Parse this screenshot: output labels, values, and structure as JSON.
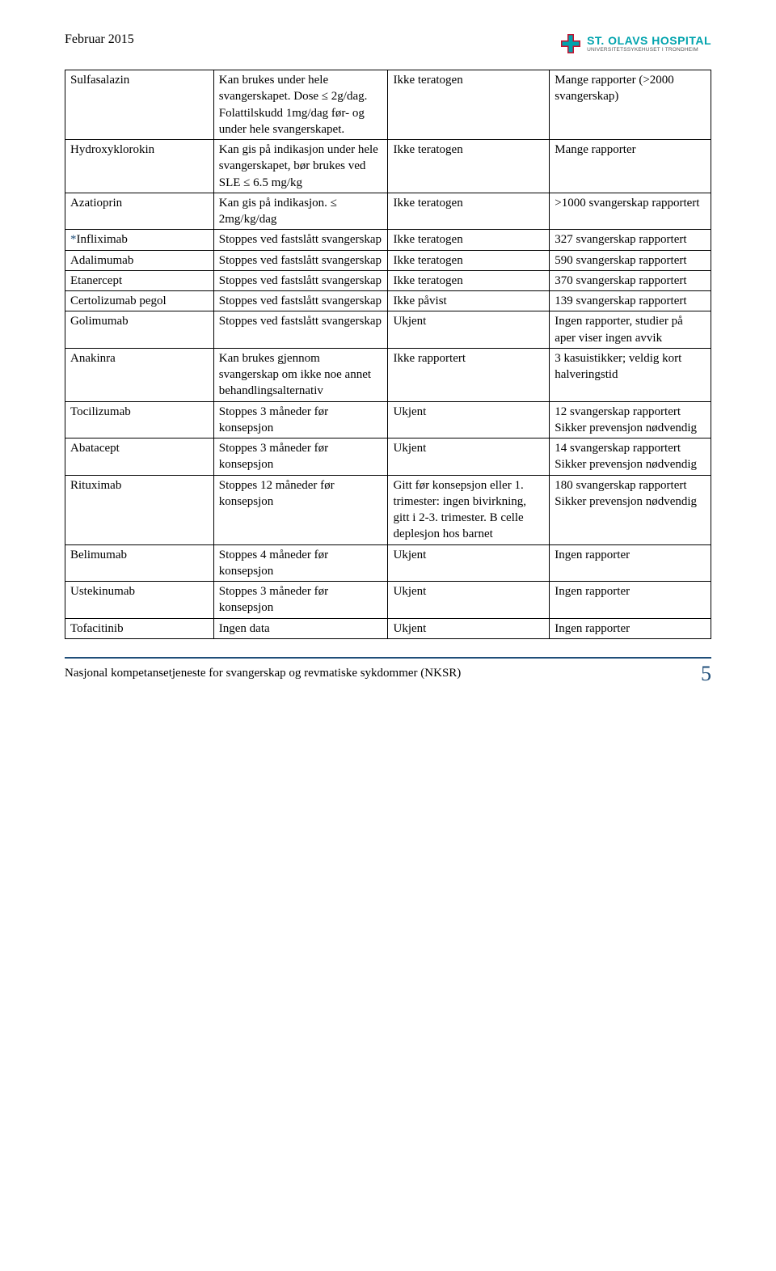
{
  "header": {
    "date": "Februar 2015",
    "logo_main": "ST. OLAVS HOSPITAL",
    "logo_sub": "UNIVERSITETSSYKEHUSET I TRONDHEIM",
    "logo_colors": {
      "accent": "#00a3ad",
      "red": "#c8102e"
    }
  },
  "table": {
    "rows": [
      {
        "drug_prefix": "",
        "drug": "Sulfasalazin",
        "use": "Kan brukes under hele svangerskapet. Dose ≤ 2g/dag. Folattilskudd 1mg/dag før- og under hele svangerskapet.",
        "terato": "Ikke teratogen",
        "reports": "Mange rapporter (>2000 svangerskap)"
      },
      {
        "drug_prefix": "",
        "drug": "Hydroxyklorokin",
        "use": "Kan gis på indikasjon under hele svangerskapet, bør brukes ved SLE ≤ 6.5 mg/kg",
        "terato": "Ikke teratogen",
        "reports": "Mange rapporter"
      },
      {
        "drug_prefix": "",
        "drug": "Azatioprin",
        "use": "Kan gis på indikasjon. ≤ 2mg/kg/dag",
        "terato": "Ikke teratogen",
        "reports": ">1000 svangerskap rapportert"
      },
      {
        "drug_prefix": "*",
        "drug": "Infliximab",
        "use": "Stoppes ved fastslått svangerskap",
        "terato": "Ikke teratogen",
        "reports": "327 svangerskap rapportert"
      },
      {
        "drug_prefix": "",
        "drug": "Adalimumab",
        "use": "Stoppes ved fastslått svangerskap",
        "terato": "Ikke teratogen",
        "reports": "590 svangerskap rapportert"
      },
      {
        "drug_prefix": "",
        "drug": "Etanercept",
        "use": "Stoppes ved fastslått svangerskap",
        "terato": "Ikke teratogen",
        "reports": "370 svangerskap rapportert"
      },
      {
        "drug_prefix": "",
        "drug": "Certolizumab pegol",
        "use": "Stoppes ved fastslått svangerskap",
        "terato": "Ikke påvist",
        "reports": "139 svangerskap rapportert"
      },
      {
        "drug_prefix": "",
        "drug": "Golimumab",
        "use": "Stoppes ved fastslått svangerskap",
        "terato": "Ukjent",
        "reports": "Ingen rapporter, studier på aper viser ingen avvik"
      },
      {
        "drug_prefix": "",
        "drug": "Anakinra",
        "use": "Kan brukes gjennom svangerskap om ikke noe annet behandlingsalternativ",
        "terato": "Ikke rapportert",
        "reports": "3 kasuistikker; veldig kort halveringstid"
      },
      {
        "drug_prefix": "",
        "drug": "Tocilizumab",
        "use": "Stoppes 3 måneder før konsepsjon",
        "terato": "Ukjent",
        "reports": "12 svangerskap rapportert Sikker prevensjon nødvendig"
      },
      {
        "drug_prefix": "",
        "drug": "Abatacept",
        "use": "Stoppes 3 måneder før konsepsjon",
        "terato": "Ukjent",
        "reports": "14 svangerskap rapportert Sikker prevensjon nødvendig"
      },
      {
        "drug_prefix": "",
        "drug": "Rituximab",
        "use": "Stoppes 12 måneder før konsepsjon",
        "terato": "Gitt før konsepsjon eller 1. trimester: ingen bivirkning, gitt i 2-3. trimester. B celle deplesjon hos barnet",
        "reports": "180 svangerskap rapportert Sikker prevensjon nødvendig"
      },
      {
        "drug_prefix": "",
        "drug": "Belimumab",
        "use": "Stoppes 4 måneder før konsepsjon",
        "terato": "Ukjent",
        "reports": "Ingen rapporter"
      },
      {
        "drug_prefix": "",
        "drug": "Ustekinumab",
        "use": "Stoppes 3 måneder før konsepsjon",
        "terato": "Ukjent",
        "reports": "Ingen rapporter"
      },
      {
        "drug_prefix": "",
        "drug": "Tofacitinib",
        "use": "Ingen data",
        "terato": "Ukjent",
        "reports": "Ingen rapporter"
      }
    ]
  },
  "footer": {
    "text": "Nasjonal kompetansetjeneste for svangerskap og revmatiske sykdommer (NKSR)",
    "page": "5"
  },
  "style": {
    "blue": "#1f4e79",
    "font_body_pt": 15,
    "font_header_pt": 16,
    "font_page_pt": 26
  }
}
